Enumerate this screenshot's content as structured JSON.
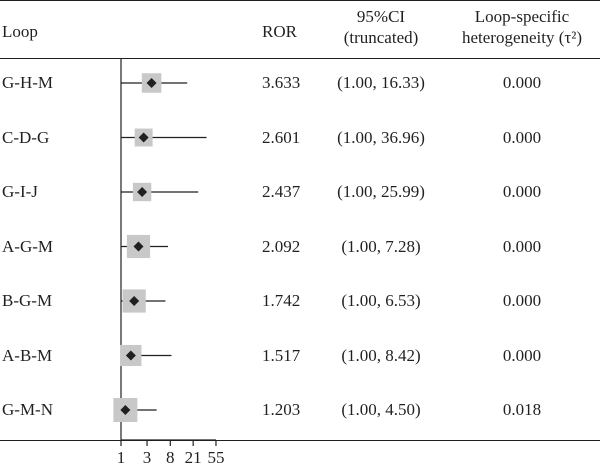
{
  "table": {
    "headers": {
      "loop": "Loop",
      "ror": "ROR",
      "ci_line1": "95%CI",
      "ci_line2": "(truncated)",
      "het_line1": "Loop-specific",
      "het_line2": "heterogeneity (τ²)"
    }
  },
  "chart_data": {
    "type": "forest",
    "x_scale": "log",
    "reference_line": 1,
    "ticks": [
      1,
      3,
      8,
      21,
      55
    ],
    "tick_labels": [
      "1",
      "3",
      "8",
      "21",
      "55"
    ],
    "colors": {
      "box": "#c8c8c8",
      "point": "#231f20",
      "line": "#231f20"
    },
    "rows": [
      {
        "loop": "G-H-M",
        "ror": 3.633,
        "ror_label": "3.633",
        "ci_low": 1.0,
        "ci_high": 16.33,
        "ci_label": "(1.00, 16.33)",
        "tau2": "0.000",
        "weight": 0.72
      },
      {
        "loop": "C-D-G",
        "ror": 2.601,
        "ror_label": "2.601",
        "ci_low": 1.0,
        "ci_high": 36.96,
        "ci_label": "(1.00, 36.96)",
        "tau2": "0.000",
        "weight": 0.62
      },
      {
        "loop": "G-I-J",
        "ror": 2.437,
        "ror_label": "2.437",
        "ci_low": 1.0,
        "ci_high": 25.99,
        "ci_label": "(1.00, 25.99)",
        "tau2": "0.000",
        "weight": 0.65
      },
      {
        "loop": "A-G-M",
        "ror": 2.092,
        "ror_label": "2.092",
        "ci_low": 1.0,
        "ci_high": 7.28,
        "ci_label": "(1.00, 7.28)",
        "tau2": "0.000",
        "weight": 0.95
      },
      {
        "loop": "B-G-M",
        "ror": 1.742,
        "ror_label": "1.742",
        "ci_low": 1.0,
        "ci_high": 6.53,
        "ci_label": "(1.00, 6.53)",
        "tau2": "0.000",
        "weight": 0.95
      },
      {
        "loop": "A-B-M",
        "ror": 1.517,
        "ror_label": "1.517",
        "ci_low": 1.0,
        "ci_high": 8.42,
        "ci_label": "(1.00, 8.42)",
        "tau2": "0.000",
        "weight": 0.82
      },
      {
        "loop": "G-M-N",
        "ror": 1.203,
        "ror_label": "1.203",
        "ci_low": 1.0,
        "ci_high": 4.5,
        "ci_label": "(1.00, 4.50)",
        "tau2": "0.018",
        "weight": 1.0
      }
    ]
  }
}
